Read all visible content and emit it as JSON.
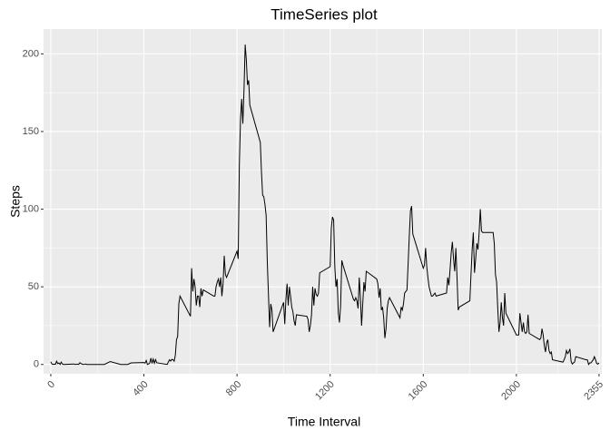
{
  "chart_data": {
    "type": "line",
    "title": "TimeSeries plot",
    "x_label": "Time Interval",
    "y_label": "Steps",
    "x": [
      0,
      5,
      10,
      15,
      20,
      25,
      30,
      35,
      40,
      45,
      50,
      55,
      100,
      105,
      110,
      115,
      120,
      125,
      130,
      135,
      140,
      145,
      150,
      155,
      200,
      230,
      250,
      255,
      300,
      330,
      345,
      400,
      405,
      410,
      415,
      420,
      425,
      430,
      435,
      440,
      445,
      450,
      455,
      500,
      505,
      510,
      515,
      520,
      525,
      530,
      535,
      540,
      545,
      550,
      555,
      600,
      605,
      610,
      615,
      620,
      625,
      630,
      635,
      640,
      645,
      650,
      655,
      700,
      705,
      710,
      715,
      720,
      725,
      730,
      735,
      740,
      745,
      750,
      755,
      800,
      805,
      810,
      815,
      820,
      825,
      830,
      835,
      840,
      845,
      850,
      855,
      900,
      905,
      910,
      915,
      920,
      925,
      930,
      935,
      940,
      945,
      950,
      955,
      1000,
      1005,
      1010,
      1015,
      1020,
      1025,
      1030,
      1035,
      1040,
      1045,
      1050,
      1055,
      1100,
      1105,
      1110,
      1115,
      1120,
      1125,
      1130,
      1135,
      1140,
      1145,
      1150,
      1155,
      1200,
      1205,
      1210,
      1215,
      1220,
      1225,
      1230,
      1235,
      1240,
      1245,
      1250,
      1255,
      1300,
      1305,
      1310,
      1315,
      1320,
      1325,
      1330,
      1335,
      1340,
      1345,
      1350,
      1355,
      1400,
      1405,
      1410,
      1415,
      1420,
      1425,
      1430,
      1435,
      1440,
      1445,
      1450,
      1455,
      1500,
      1505,
      1510,
      1515,
      1520,
      1525,
      1530,
      1535,
      1540,
      1545,
      1550,
      1555,
      1600,
      1605,
      1610,
      1615,
      1620,
      1625,
      1630,
      1635,
      1640,
      1645,
      1650,
      1655,
      1700,
      1705,
      1710,
      1715,
      1720,
      1725,
      1730,
      1735,
      1740,
      1745,
      1750,
      1755,
      1800,
      1805,
      1810,
      1815,
      1820,
      1825,
      1830,
      1835,
      1840,
      1845,
      1850,
      1855,
      1900,
      1905,
      1910,
      1915,
      1920,
      1925,
      1930,
      1935,
      1940,
      1945,
      1950,
      1955,
      2000,
      2005,
      2010,
      2015,
      2020,
      2025,
      2030,
      2035,
      2040,
      2045,
      2050,
      2055,
      2100,
      2105,
      2110,
      2115,
      2120,
      2125,
      2130,
      2135,
      2140,
      2145,
      2150,
      2155,
      2200,
      2205,
      2210,
      2215,
      2220,
      2225,
      2230,
      2235,
      2240,
      2245,
      2250,
      2255,
      2300,
      2305,
      2310,
      2315,
      2320,
      2325,
      2330,
      2335,
      2340,
      2345,
      2350,
      2355
    ],
    "y": [
      1.7,
      0.3,
      0.1,
      0.2,
      0.1,
      2.1,
      0.5,
      0.9,
      0,
      1.5,
      0.3,
      0,
      0.3,
      0,
      0.1,
      0.2,
      0,
      1.1,
      0.6,
      0.2,
      0,
      0.1,
      0.3,
      0,
      0,
      0,
      1.5,
      1.9,
      0,
      0,
      1,
      1.2,
      0.9,
      2.6,
      0,
      0.3,
      0.9,
      4.1,
      0.7,
      3.5,
      0.8,
      3.1,
      1.1,
      0,
      1.6,
      3,
      2.2,
      3.3,
      3,
      2.1,
      6,
      16,
      18,
      39,
      44,
      31,
      62,
      47,
      55,
      50,
      38,
      44,
      44,
      37,
      49,
      44,
      48,
      44,
      44,
      50,
      53,
      55,
      50,
      56,
      44,
      52,
      70,
      58,
      56,
      73,
      68,
      129,
      158,
      171,
      155,
      177,
      206,
      196,
      180,
      183,
      167,
      143,
      124,
      109,
      108,
      103,
      96,
      66,
      45,
      24,
      39,
      35,
      21,
      40,
      26,
      42,
      52,
      38,
      50,
      44,
      37,
      34,
      28,
      25,
      32,
      31,
      29,
      21,
      25,
      32,
      50,
      38,
      49,
      45,
      44,
      46,
      59,
      63,
      88,
      95,
      93,
      63,
      50,
      55,
      33,
      27,
      38,
      67,
      64,
      42,
      41,
      43,
      41,
      36,
      56,
      43,
      25,
      39,
      53,
      47,
      60,
      55,
      52,
      43,
      49,
      35,
      37,
      30,
      17,
      23,
      36,
      41,
      43,
      30,
      37,
      35,
      39,
      46,
      47,
      48,
      65,
      83,
      99,
      102,
      84,
      62,
      64,
      75,
      63,
      56,
      50,
      47,
      44,
      44,
      45,
      46,
      44,
      46,
      56,
      51,
      61,
      72,
      79,
      68,
      60,
      75,
      56,
      35,
      37,
      41,
      58,
      74,
      85,
      59,
      68,
      78,
      74,
      85,
      100,
      86,
      85,
      85,
      78,
      58,
      53,
      36,
      21,
      27,
      40,
      30,
      25,
      46,
      33,
      19,
      19,
      19,
      33,
      27,
      21,
      27,
      21,
      20,
      21,
      32,
      20,
      16,
      17,
      23,
      19,
      12,
      8,
      14,
      16,
      9,
      7,
      8,
      3,
      1.5,
      3,
      5,
      9,
      7,
      8,
      10,
      2,
      0.3,
      1,
      1.6,
      5,
      3,
      3,
      0,
      1,
      1,
      2,
      3,
      5,
      3,
      0.6,
      0.2,
      1
    ],
    "color": "#000000",
    "xlim": [
      -31,
      2367
    ],
    "ylim": [
      -6,
      216
    ],
    "xticks": [
      0,
      400,
      800,
      1200,
      1600,
      2000,
      2355
    ],
    "yticks": [
      0,
      50,
      100,
      150,
      200
    ],
    "x_minor_ticks": [
      200,
      600,
      1000,
      1400,
      1800,
      2177.5
    ],
    "y_minor_ticks": [
      25,
      75,
      125,
      175
    ],
    "grid": true
  }
}
